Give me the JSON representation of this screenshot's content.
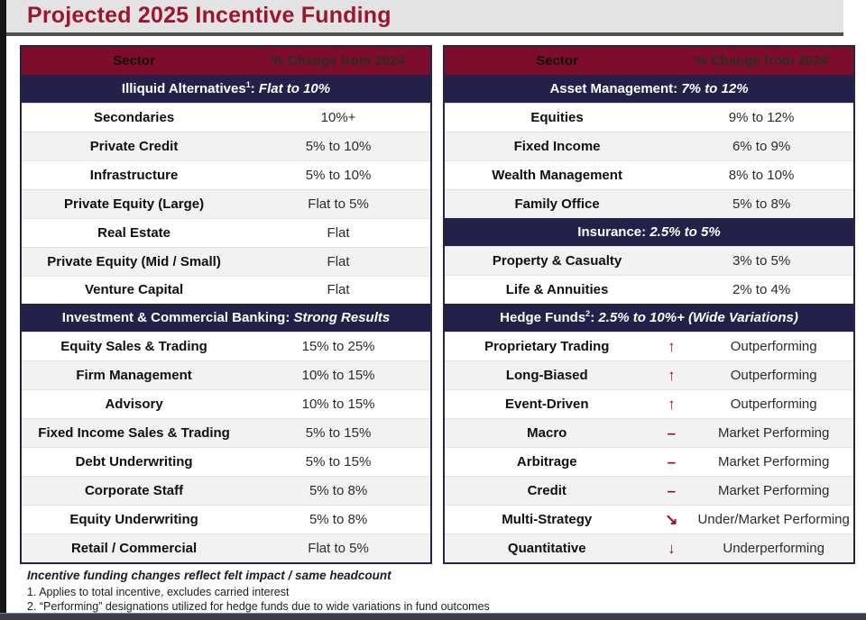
{
  "title": "Projected 2025 Incentive Funding",
  "colors": {
    "header_maroon": "#7D0D2B",
    "section_navy": "#23214A",
    "title_red": "#9C1630",
    "alt_row_gray": "#F2F2F3",
    "arrow_red": "#9B0E26"
  },
  "tables": {
    "left": {
      "header": {
        "sector": "Sector",
        "change": "% Change from 2024"
      },
      "sections": [
        {
          "prefix": "Illiquid Alternatives",
          "sup": "1",
          "sep": ": ",
          "summary": "Flat to 10%",
          "rows": [
            {
              "name": "Secondaries",
              "value": "10%+"
            },
            {
              "name": "Private Credit",
              "value": "5% to 10%"
            },
            {
              "name": "Infrastructure",
              "value": "5% to 10%"
            },
            {
              "name": "Private Equity (Large)",
              "value": "Flat to 5%"
            },
            {
              "name": "Real Estate",
              "value": "Flat"
            },
            {
              "name": "Private Equity (Mid / Small)",
              "value": "Flat"
            },
            {
              "name": "Venture Capital",
              "value": "Flat"
            }
          ]
        },
        {
          "prefix": "Investment & Commercial Banking",
          "sup": "",
          "sep": ": ",
          "summary": "Strong Results",
          "rows": [
            {
              "name": "Equity Sales & Trading",
              "value": "15% to 25%"
            },
            {
              "name": "Firm Management",
              "value": "10% to 15%"
            },
            {
              "name": "Advisory",
              "value": "10% to 15%"
            },
            {
              "name": "Fixed Income Sales & Trading",
              "value": "5% to 15%"
            },
            {
              "name": "Debt Underwriting",
              "value": "5% to 15%"
            },
            {
              "name": "Corporate Staff",
              "value": "5% to 8%"
            },
            {
              "name": "Equity Underwriting",
              "value": "5% to 8%"
            },
            {
              "name": "Retail / Commercial",
              "value": "Flat to 5%"
            }
          ]
        }
      ]
    },
    "right": {
      "header": {
        "sector": "Sector",
        "change": "% Change from 2024"
      },
      "sections": [
        {
          "prefix": "Asset Management",
          "sup": "",
          "sep": ": ",
          "summary": "7% to 12%",
          "rows": [
            {
              "name": "Equities",
              "value": "9% to 12%"
            },
            {
              "name": "Fixed Income",
              "value": "6% to 9%"
            },
            {
              "name": "Wealth Management",
              "value": "8% to 10%"
            },
            {
              "name": "Family Office",
              "value": "5% to 8%"
            }
          ]
        },
        {
          "prefix": "Insurance",
          "sup": "",
          "sep": ": ",
          "summary": "2.5% to 5%",
          "rows": [
            {
              "name": "Property & Casualty",
              "value": "3% to 5%"
            },
            {
              "name": "Life & Annuities",
              "value": "2% to 4%"
            }
          ]
        },
        {
          "prefix": "Hedge Funds",
          "sup": "2",
          "sep": ": ",
          "summary": "2.5% to 10%+ (Wide Variations)",
          "rows": [
            {
              "name": "Proprietary Trading",
              "arrow": "↑",
              "value": "Outperforming"
            },
            {
              "name": "Long-Biased",
              "arrow": "↑",
              "value": "Outperforming"
            },
            {
              "name": "Event-Driven",
              "arrow": "↑",
              "value": "Outperforming"
            },
            {
              "name": "Macro",
              "arrow": "–",
              "value": "Market Performing"
            },
            {
              "name": "Arbitrage",
              "arrow": "–",
              "value": "Market Performing"
            },
            {
              "name": "Credit",
              "arrow": "–",
              "value": "Market Performing"
            },
            {
              "name": "Multi-Strategy",
              "arrow": "↘",
              "value": "Under/Market Performing"
            },
            {
              "name": "Quantitative",
              "arrow": "↓",
              "value": "Underperforming"
            }
          ]
        }
      ]
    }
  },
  "footnotes": {
    "emphasis": "Incentive funding changes reflect felt impact / same headcount",
    "note1": "1. Applies to total incentive, excludes carried interest",
    "note2": "2. “Performing” designations utilized for hedge funds due to wide variations in fund outcomes"
  }
}
